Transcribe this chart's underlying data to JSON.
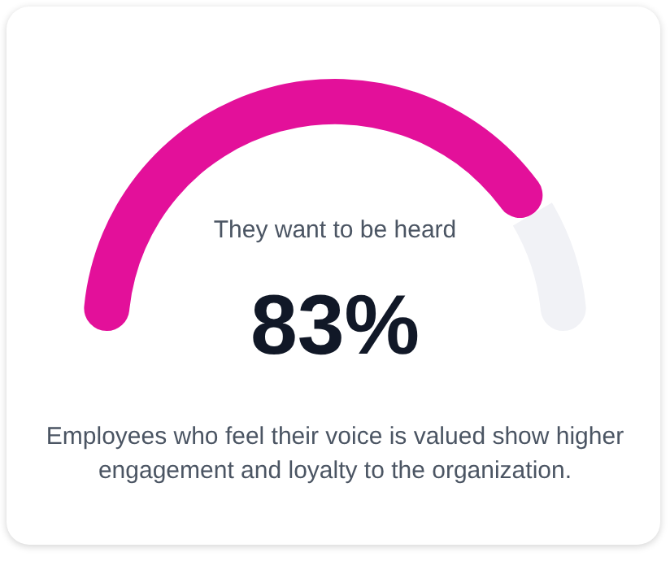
{
  "chart_data": {
    "type": "donut",
    "title": "They want to be heard",
    "categories": [
      null,
      null
    ],
    "values": [
      83,
      17
    ],
    "colors": [
      "#e3109a",
      "#f1f2f6"
    ],
    "value_labels": [
      "83%",
      null
    ],
    "legend": false,
    "annotations": [
      "Employees who feel their voice is valued show higher engagement and loyalty to the organization."
    ]
  }
}
